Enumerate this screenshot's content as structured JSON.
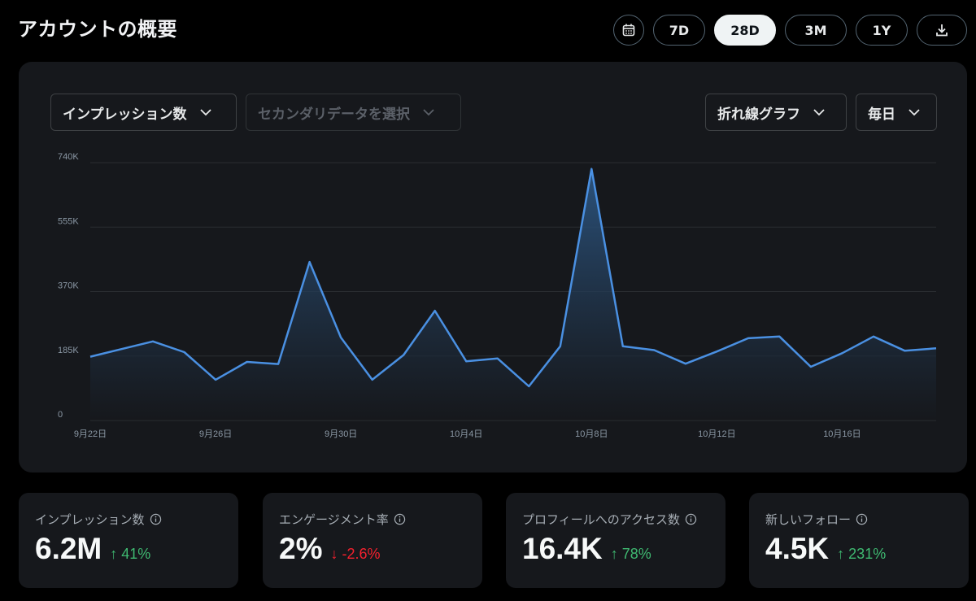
{
  "header": {
    "title": "アカウントの概要",
    "ranges": [
      {
        "label": "7D",
        "active": false
      },
      {
        "label": "28D",
        "active": true
      },
      {
        "label": "3M",
        "active": false
      },
      {
        "label": "1Y",
        "active": false
      }
    ],
    "icons": {
      "calendar": "calendar-icon",
      "download": "download-icon"
    }
  },
  "controls": {
    "primary_metric": "インプレッション数",
    "secondary_metric": "セカンダリデータを選択",
    "chart_type": "折れ線グラフ",
    "interval": "毎日"
  },
  "chart_data": {
    "type": "area",
    "color": "#4a90e2",
    "y_ticks": [
      "0",
      "185K",
      "370K",
      "555K",
      "740K"
    ],
    "ylim": [
      0,
      740000
    ],
    "x_tick_labels": [
      "9月22日",
      "9月26日",
      "9月30日",
      "10月4日",
      "10月8日",
      "10月12日",
      "10月16日"
    ],
    "x_tick_indices": [
      0,
      4,
      8,
      12,
      16,
      20,
      24
    ],
    "grid": true,
    "series": [
      {
        "x": [
          "9月22日",
          "9月23日",
          "9月24日",
          "9月25日",
          "9月26日",
          "9月27日",
          "9月28日",
          "9月29日",
          "9月30日",
          "10月1日",
          "10月2日",
          "10月3日",
          "10月4日",
          "10月5日",
          "10月6日",
          "10月7日",
          "10月8日",
          "10月9日",
          "10月10日",
          "10月11日",
          "10月12日",
          "10月13日",
          "10月14日",
          "10月15日",
          "10月16日",
          "10月17日",
          "10月18日",
          "10月19日"
        ],
        "values": [
          183000,
          205000,
          227000,
          196000,
          117000,
          168000,
          162000,
          455000,
          238000,
          117000,
          188000,
          315000,
          170000,
          178000,
          98000,
          213000,
          722000,
          213000,
          202000,
          163000,
          198000,
          236000,
          241000,
          154000,
          193000,
          241000,
          200000,
          207000
        ]
      }
    ]
  },
  "stats": [
    {
      "label": "インプレッション数",
      "value": "6.2M",
      "arrow": "↑",
      "change": "41%",
      "trend": "up"
    },
    {
      "label": "エンゲージメント率",
      "value": "2%",
      "arrow": "↓",
      "change": "-2.6%",
      "trend": "down"
    },
    {
      "label": "プロフィールへのアクセス数",
      "value": "16.4K",
      "arrow": "↑",
      "change": "78%",
      "trend": "up"
    },
    {
      "label": "新しいフォロー",
      "value": "4.5K",
      "arrow": "↑",
      "change": "231%",
      "trend": "up"
    }
  ]
}
